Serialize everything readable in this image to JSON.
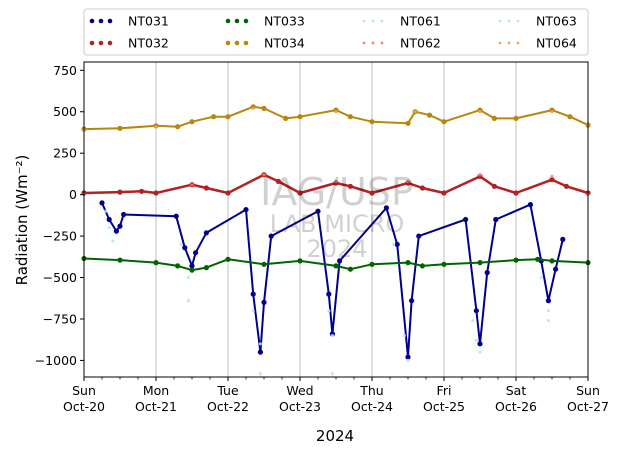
{
  "chart_data": {
    "type": "line",
    "xlabel": "2024",
    "ylabel": "Radiation (Wm⁻²)",
    "ylim": [
      -1100,
      800
    ],
    "yticks": [
      -1000,
      -750,
      -500,
      -250,
      0,
      250,
      500,
      750
    ],
    "xlim_days": [
      0,
      7
    ],
    "xticks": [
      {
        "day": "Sun",
        "date": "Oct-20"
      },
      {
        "day": "Mon",
        "date": "Oct-21"
      },
      {
        "day": "Tue",
        "date": "Oct-22"
      },
      {
        "day": "Wed",
        "date": "Oct-23"
      },
      {
        "day": "Thu",
        "date": "Oct-24"
      },
      {
        "day": "Fri",
        "date": "Oct-25"
      },
      {
        "day": "Sat",
        "date": "Oct-26"
      },
      {
        "day": "Sun",
        "date": "Oct-27"
      }
    ],
    "grid": "vertical",
    "legend_position": "top",
    "watermark": [
      "IAG/USP",
      "LAB MICRO",
      "2024"
    ],
    "series": [
      {
        "name": "NT031",
        "color": "#00008b",
        "style": "dot",
        "points": [
          [
            0.25,
            -50
          ],
          [
            0.35,
            -150
          ],
          [
            0.45,
            -220
          ],
          [
            0.5,
            -190
          ],
          [
            0.55,
            -120
          ],
          [
            1.28,
            -130
          ],
          [
            1.4,
            -320
          ],
          [
            1.5,
            -430
          ],
          [
            1.55,
            -350
          ],
          [
            1.7,
            -230
          ],
          [
            2.25,
            -90
          ],
          [
            2.35,
            -600
          ],
          [
            2.45,
            -950
          ],
          [
            2.5,
            -650
          ],
          [
            2.6,
            -250
          ],
          [
            3.25,
            -100
          ],
          [
            3.4,
            -600
          ],
          [
            3.45,
            -840
          ],
          [
            3.55,
            -400
          ],
          [
            4.2,
            -80
          ],
          [
            4.35,
            -300
          ],
          [
            4.5,
            -980
          ],
          [
            4.55,
            -640
          ],
          [
            4.65,
            -250
          ],
          [
            5.3,
            -150
          ],
          [
            5.45,
            -700
          ],
          [
            5.5,
            -900
          ],
          [
            5.6,
            -470
          ],
          [
            5.72,
            -150
          ],
          [
            6.2,
            -60
          ],
          [
            6.35,
            -400
          ],
          [
            6.45,
            -640
          ],
          [
            6.55,
            -450
          ],
          [
            6.65,
            -270
          ]
        ]
      },
      {
        "name": "NT032",
        "color": "#b22222",
        "style": "dot",
        "points": [
          [
            0,
            10
          ],
          [
            0.5,
            15
          ],
          [
            0.8,
            20
          ],
          [
            1,
            10
          ],
          [
            1.5,
            60
          ],
          [
            1.7,
            40
          ],
          [
            2,
            10
          ],
          [
            2.5,
            120
          ],
          [
            2.7,
            80
          ],
          [
            3,
            10
          ],
          [
            3.5,
            70
          ],
          [
            3.7,
            50
          ],
          [
            4,
            10
          ],
          [
            4.5,
            70
          ],
          [
            4.7,
            40
          ],
          [
            5,
            10
          ],
          [
            5.5,
            110
          ],
          [
            5.7,
            50
          ],
          [
            6,
            10
          ],
          [
            6.5,
            90
          ],
          [
            6.7,
            50
          ],
          [
            7,
            10
          ]
        ]
      },
      {
        "name": "NT033",
        "color": "#006400",
        "style": "dot",
        "points": [
          [
            0,
            -385
          ],
          [
            0.5,
            -395
          ],
          [
            1,
            -410
          ],
          [
            1.3,
            -430
          ],
          [
            1.5,
            -455
          ],
          [
            1.7,
            -440
          ],
          [
            2,
            -390
          ],
          [
            2.5,
            -420
          ],
          [
            3,
            -400
          ],
          [
            3.5,
            -430
          ],
          [
            3.7,
            -450
          ],
          [
            4,
            -420
          ],
          [
            4.5,
            -410
          ],
          [
            4.7,
            -430
          ],
          [
            5,
            -420
          ],
          [
            5.5,
            -410
          ],
          [
            6,
            -395
          ],
          [
            6.3,
            -390
          ],
          [
            6.5,
            -400
          ],
          [
            7,
            -410
          ]
        ]
      },
      {
        "name": "NT034",
        "color": "#b8860b",
        "style": "dot",
        "points": [
          [
            0,
            395
          ],
          [
            0.5,
            400
          ],
          [
            1,
            415
          ],
          [
            1.3,
            410
          ],
          [
            1.5,
            440
          ],
          [
            1.8,
            470
          ],
          [
            2,
            470
          ],
          [
            2.35,
            530
          ],
          [
            2.5,
            520
          ],
          [
            2.8,
            460
          ],
          [
            3,
            470
          ],
          [
            3.5,
            510
          ],
          [
            3.7,
            470
          ],
          [
            4,
            440
          ],
          [
            4.5,
            430
          ],
          [
            4.6,
            500
          ],
          [
            4.8,
            480
          ],
          [
            5,
            440
          ],
          [
            5.5,
            510
          ],
          [
            5.7,
            460
          ],
          [
            6,
            460
          ],
          [
            6.5,
            510
          ],
          [
            6.75,
            470
          ],
          [
            7,
            420
          ]
        ]
      },
      {
        "name": "NT061",
        "color": "#b0e8f0",
        "style": "sparse-dot",
        "points": [
          [
            0.3,
            -100
          ],
          [
            0.4,
            -280
          ],
          [
            1.35,
            -300
          ],
          [
            1.45,
            -640
          ],
          [
            2.35,
            -700
          ],
          [
            2.45,
            -1080
          ],
          [
            3.4,
            -700
          ],
          [
            3.45,
            -1080
          ],
          [
            4.3,
            -300
          ],
          [
            4.5,
            -1000
          ],
          [
            5.4,
            -760
          ],
          [
            5.5,
            -950
          ],
          [
            6.35,
            -500
          ],
          [
            6.45,
            -760
          ]
        ]
      },
      {
        "name": "NT062",
        "color": "#fa8072",
        "style": "sparse-dot",
        "points": [
          [
            0,
            0
          ],
          [
            1.5,
            60
          ],
          [
            2.5,
            120
          ],
          [
            3.5,
            80
          ],
          [
            4.5,
            80
          ],
          [
            5.5,
            120
          ],
          [
            6.5,
            110
          ],
          [
            7,
            0
          ]
        ]
      },
      {
        "name": "NT063",
        "color": "#b0e8f0",
        "style": "sparse-dot",
        "points": [
          [
            0.35,
            -200
          ],
          [
            1.45,
            -500
          ],
          [
            2.45,
            -900
          ],
          [
            3.45,
            -850
          ],
          [
            4.45,
            -850
          ],
          [
            5.45,
            -880
          ],
          [
            6.45,
            -700
          ]
        ]
      },
      {
        "name": "NT064",
        "color": "#f4a460",
        "style": "sparse-dot",
        "points": [
          [
            0,
            390
          ],
          [
            1,
            410
          ],
          [
            2.35,
            520
          ],
          [
            3.5,
            500
          ],
          [
            4.6,
            500
          ],
          [
            5.5,
            500
          ],
          [
            6.5,
            500
          ],
          [
            7,
            420
          ]
        ]
      }
    ]
  }
}
